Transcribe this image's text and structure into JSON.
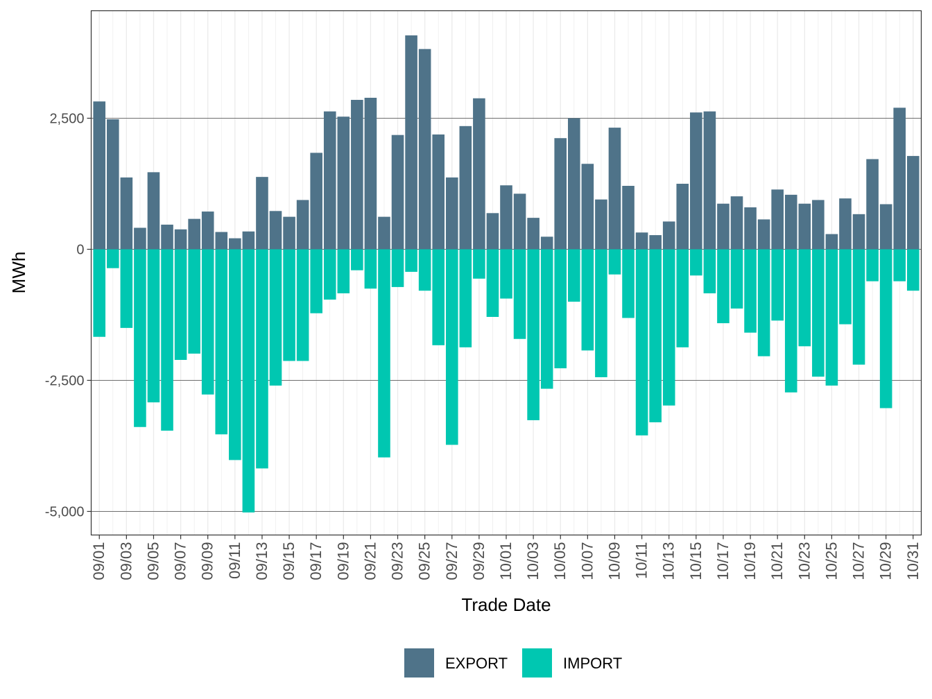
{
  "chart_data": {
    "type": "bar",
    "title": "",
    "xlabel": "Trade Date",
    "ylabel": "MWh",
    "ylim": [
      -5450,
      4550
    ],
    "yticks": [
      2500,
      0,
      -2500,
      -5000
    ],
    "ytick_labels": [
      "2,500",
      "0",
      "-2,500",
      "-5,000"
    ],
    "xtick_labels": [
      "09/01",
      "09/03",
      "09/05",
      "09/07",
      "09/09",
      "09/11",
      "09/13",
      "09/15",
      "09/17",
      "09/19",
      "09/21",
      "09/23",
      "09/25",
      "09/27",
      "09/29",
      "10/01",
      "10/03",
      "10/05",
      "10/07",
      "10/09",
      "10/11",
      "10/13",
      "10/15",
      "10/17",
      "10/19",
      "10/21",
      "10/23",
      "10/25",
      "10/27",
      "10/29",
      "10/31"
    ],
    "categories": [
      "09/01",
      "09/02",
      "09/03",
      "09/04",
      "09/05",
      "09/06",
      "09/07",
      "09/08",
      "09/09",
      "09/10",
      "09/11",
      "09/12",
      "09/13",
      "09/14",
      "09/15",
      "09/16",
      "09/17",
      "09/18",
      "09/19",
      "09/20",
      "09/21",
      "09/22",
      "09/23",
      "09/24",
      "09/25",
      "09/26",
      "09/27",
      "09/28",
      "09/29",
      "09/30",
      "10/01",
      "10/02",
      "10/03",
      "10/04",
      "10/05",
      "10/06",
      "10/07",
      "10/08",
      "10/09",
      "10/10",
      "10/11",
      "10/12",
      "10/13",
      "10/14",
      "10/15",
      "10/16",
      "10/17",
      "10/18",
      "10/19",
      "10/20",
      "10/21",
      "10/22",
      "10/23",
      "10/24",
      "10/25",
      "10/26",
      "10/27",
      "10/28",
      "10/29",
      "10/30",
      "10/31"
    ],
    "series": [
      {
        "name": "EXPORT",
        "color": "#4f7389",
        "values": [
          2820,
          2480,
          1370,
          410,
          1470,
          470,
          380,
          580,
          720,
          330,
          210,
          340,
          1380,
          730,
          620,
          940,
          1840,
          2630,
          2530,
          2850,
          2890,
          620,
          2180,
          4080,
          3820,
          2190,
          1370,
          2350,
          2880,
          690,
          1220,
          1060,
          600,
          240,
          2120,
          2500,
          1630,
          950,
          2320,
          1210,
          320,
          270,
          530,
          1250,
          2610,
          2630,
          870,
          1010,
          800,
          570,
          1140,
          1040,
          870,
          940,
          290,
          970,
          670,
          1720,
          860,
          2700,
          1780
        ]
      },
      {
        "name": "IMPORT",
        "color": "#00c7b1",
        "values": [
          -1670,
          -360,
          -1500,
          -3390,
          -2920,
          -3460,
          -2110,
          -1990,
          -2770,
          -3530,
          -4020,
          -5020,
          -4180,
          -2600,
          -2130,
          -2130,
          -1220,
          -960,
          -840,
          -400,
          -750,
          -3970,
          -720,
          -430,
          -790,
          -1830,
          -3730,
          -1870,
          -560,
          -1290,
          -940,
          -1710,
          -3260,
          -2660,
          -2270,
          -1000,
          -1930,
          -2440,
          -480,
          -1310,
          -3550,
          -3300,
          -2980,
          -1870,
          -500,
          -840,
          -1410,
          -1130,
          -1590,
          -2040,
          -1360,
          -2730,
          -1850,
          -2430,
          -2600,
          -1430,
          -2200,
          -610,
          -3030,
          -610,
          -790
        ]
      }
    ],
    "legend": {
      "position": "bottom",
      "entries": [
        "EXPORT",
        "IMPORT"
      ]
    },
    "grid": true
  }
}
